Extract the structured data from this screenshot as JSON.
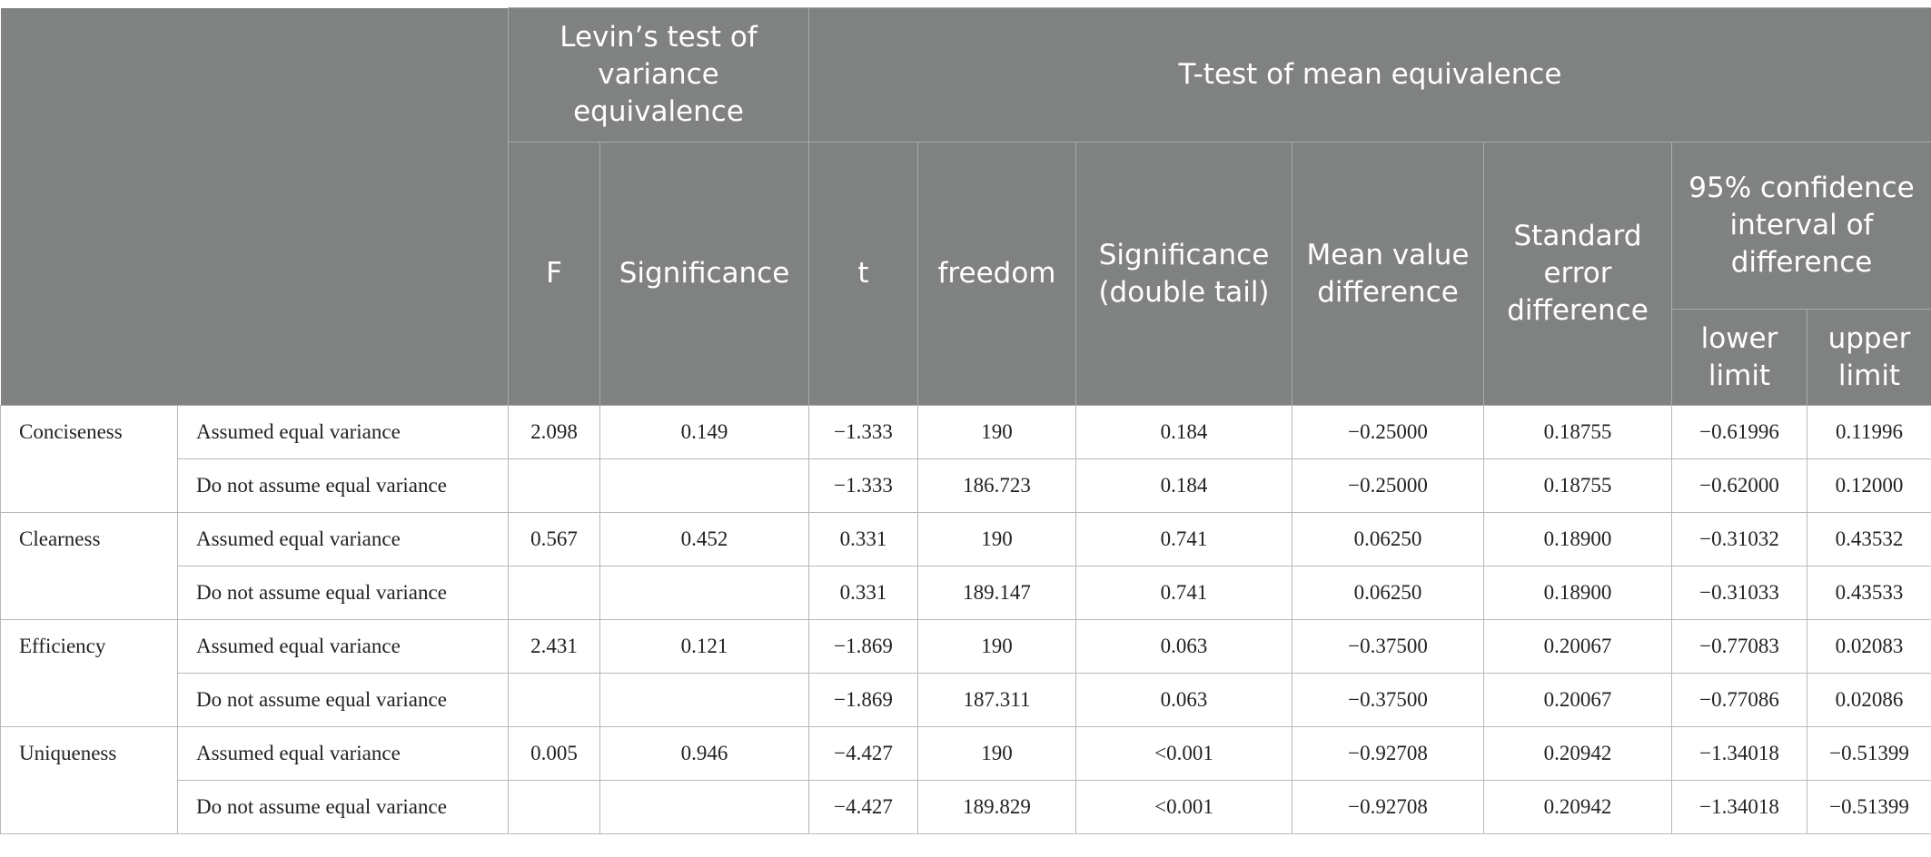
{
  "headers": {
    "levin_group": "Levin’s test of variance equivalence",
    "ttest_group": "T-test of mean equivalence",
    "f": "F",
    "significance": "Significance",
    "t": "t",
    "freedom": "freedom",
    "sig_double_tail": "Significance (double tail)",
    "mean_diff": "Mean value difference",
    "std_err_diff": "Standard error difference",
    "ci_group": "95% confidence interval of difference",
    "lower": "lower limit",
    "upper": "upper limit"
  },
  "groups": [
    {
      "name": "Conciseness",
      "rows": [
        {
          "condition": "Assumed equal variance",
          "f": "2.098",
          "sig": "0.149",
          "t": "−1.333",
          "freedom": "190",
          "sig2": "0.184",
          "mean_diff": "−0.25000",
          "se_diff": "0.18755",
          "lower": "−0.61996",
          "upper": "0.11996"
        },
        {
          "condition": "Do not assume equal variance",
          "f": "",
          "sig": "",
          "t": "−1.333",
          "freedom": "186.723",
          "sig2": "0.184",
          "mean_diff": "−0.25000",
          "se_diff": "0.18755",
          "lower": "−0.62000",
          "upper": "0.12000"
        }
      ]
    },
    {
      "name": "Clearness",
      "rows": [
        {
          "condition": "Assumed equal variance",
          "f": "0.567",
          "sig": "0.452",
          "t": "0.331",
          "freedom": "190",
          "sig2": "0.741",
          "mean_diff": "0.06250",
          "se_diff": "0.18900",
          "lower": "−0.31032",
          "upper": "0.43532"
        },
        {
          "condition": "Do not assume equal variance",
          "f": "",
          "sig": "",
          "t": "0.331",
          "freedom": "189.147",
          "sig2": "0.741",
          "mean_diff": "0.06250",
          "se_diff": "0.18900",
          "lower": "−0.31033",
          "upper": "0.43533"
        }
      ]
    },
    {
      "name": "Efficiency",
      "rows": [
        {
          "condition": "Assumed equal variance",
          "f": "2.431",
          "sig": "0.121",
          "t": "−1.869",
          "freedom": "190",
          "sig2": "0.063",
          "mean_diff": "−0.37500",
          "se_diff": "0.20067",
          "lower": "−0.77083",
          "upper": "0.02083"
        },
        {
          "condition": "Do not assume equal variance",
          "f": "",
          "sig": "",
          "t": "−1.869",
          "freedom": "187.311",
          "sig2": "0.063",
          "mean_diff": "−0.37500",
          "se_diff": "0.20067",
          "lower": "−0.77086",
          "upper": "0.02086"
        }
      ]
    },
    {
      "name": "Uniqueness",
      "rows": [
        {
          "condition": "Assumed equal variance",
          "f": "0.005",
          "sig": "0.946",
          "t": "−4.427",
          "freedom": "190",
          "sig2": "<0.001",
          "mean_diff": "−0.92708",
          "se_diff": "0.20942",
          "lower": "−1.34018",
          "upper": "−0.51399"
        },
        {
          "condition": "Do not assume equal variance",
          "f": "",
          "sig": "",
          "t": "−4.427",
          "freedom": "189.829",
          "sig2": "<0.001",
          "mean_diff": "−0.92708",
          "se_diff": "0.20942",
          "lower": "−1.34018",
          "upper": "−0.51399"
        }
      ]
    }
  ]
}
